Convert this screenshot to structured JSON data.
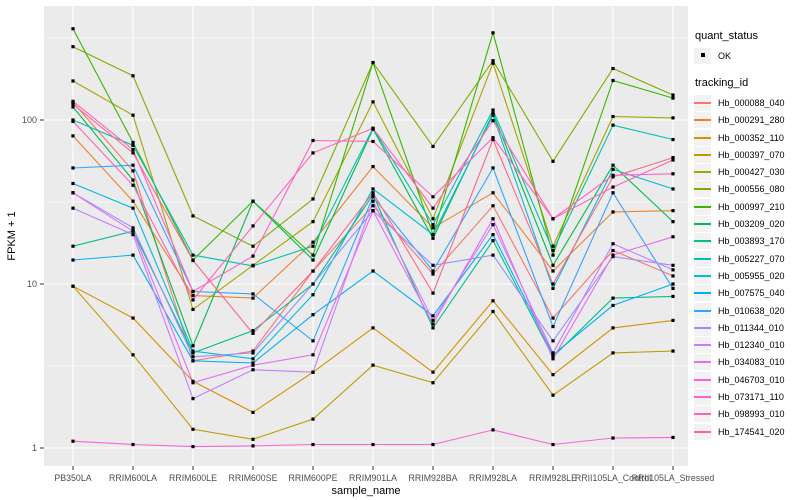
{
  "chart_data": {
    "type": "line",
    "title": "",
    "xlabel": "sample_name",
    "ylabel": "FPKM + 1",
    "y_scale": "log10",
    "ylim": [
      1,
      475
    ],
    "y_ticks": [
      1,
      10,
      100
    ],
    "y_minor_ticks": [
      3.162,
      31.62,
      316.2
    ],
    "grid": "on",
    "panel_bg": "#EBEBEB",
    "grid_color": "#FFFFFF",
    "point_color": "#000000",
    "axis_text_color": "#4D4D4D",
    "tick_mark_color": "#333333",
    "legend_position": "right",
    "categories": [
      "PB350LA",
      "RRIM600LA",
      "RRIM600LE",
      "RRIM600SE",
      "RRIM600PE",
      "RRIM901LA",
      "RRIM928BA",
      "RRIM928LA",
      "RRIM928LE",
      "RRII105LA_Control",
      "RRII105LA_Stressed"
    ],
    "series": [
      {
        "name": "Hb_000088_040",
        "color": "#F8766D",
        "values": [
          128,
          49,
          3.4,
          3.9,
          12,
          30,
          11.5,
          30,
          6.2,
          16,
          11.2
        ]
      },
      {
        "name": "Hb_000291_280",
        "color": "#EA8331",
        "values": [
          80,
          32,
          8.5,
          8.2,
          18,
          52,
          22,
          36,
          12,
          27.5,
          28
        ]
      },
      {
        "name": "Hb_000352_110",
        "color": "#D89000",
        "values": [
          9.7,
          6.2,
          2.55,
          1.65,
          2.9,
          5.4,
          2.9,
          7.9,
          2.8,
          5.4,
          6.0
        ]
      },
      {
        "name": "Hb_000397_070",
        "color": "#C09B00",
        "values": [
          9.7,
          3.7,
          1.3,
          1.13,
          1.5,
          3.2,
          2.5,
          6.8,
          2.1,
          3.8,
          3.9
        ]
      },
      {
        "name": "Hb_000427_030",
        "color": "#A3A500",
        "values": [
          173,
          107,
          7.0,
          13,
          24,
          129,
          25,
          222,
          17,
          105,
          103
        ]
      },
      {
        "name": "Hb_000556_080",
        "color": "#7CAE00",
        "values": [
          280,
          186,
          26,
          17,
          33,
          224,
          69,
          230,
          56,
          206,
          142
        ]
      },
      {
        "name": "Hb_000997_210",
        "color": "#39B600",
        "values": [
          360,
          73,
          14,
          32,
          15,
          224,
          20,
          340,
          15,
          174,
          136
        ]
      },
      {
        "name": "Hb_003209_020",
        "color": "#00BB4E",
        "values": [
          120,
          43,
          4.2,
          32,
          14,
          88,
          19,
          110,
          13,
          53,
          24
        ]
      },
      {
        "name": "Hb_003893_170",
        "color": "#00C087",
        "values": [
          17,
          21,
          3.8,
          5.2,
          10,
          35,
          5.4,
          18.4,
          3.6,
          8.2,
          8.4
        ]
      },
      {
        "name": "Hb_005227_070",
        "color": "#00C0B2",
        "values": [
          100,
          70,
          15,
          12.9,
          17,
          89,
          23,
          115,
          16,
          93,
          76
        ]
      },
      {
        "name": "Hb_005955_020",
        "color": "#00BCD8",
        "values": [
          41,
          29,
          3.9,
          3.5,
          8.6,
          38,
          20,
          107,
          9.4,
          50,
          38
        ]
      },
      {
        "name": "Hb_007575_040",
        "color": "#00B0F6",
        "values": [
          14,
          15,
          3.4,
          3.3,
          6.5,
          12,
          6.4,
          20,
          3.7,
          7.4,
          10
        ]
      },
      {
        "name": "Hb_010638_020",
        "color": "#35A2FF",
        "values": [
          51,
          53,
          9.0,
          8.7,
          4.5,
          34,
          12,
          51,
          5.5,
          36,
          9.4
        ]
      },
      {
        "name": "Hb_011344_010",
        "color": "#9590FF",
        "values": [
          36,
          22,
          3.6,
          3.8,
          10,
          28,
          13,
          15,
          4.5,
          14.7,
          13
        ]
      },
      {
        "name": "Hb_012340_010",
        "color": "#C77CFF",
        "values": [
          29,
          20,
          2.0,
          3.0,
          2.9,
          32,
          6.0,
          23,
          3.8,
          17.6,
          12.2
        ]
      },
      {
        "name": "Hb_034083_010",
        "color": "#E76BF3",
        "values": [
          36,
          21,
          2.5,
          3.2,
          3.7,
          28,
          5.7,
          25,
          3.5,
          15,
          19.4
        ]
      },
      {
        "name": "Hb_046703_010",
        "color": "#FA62DB",
        "values": [
          1.1,
          1.05,
          1.02,
          1.03,
          1.05,
          1.05,
          1.05,
          1.29,
          1.05,
          1.15,
          1.16
        ]
      },
      {
        "name": "Hb_073171_110",
        "color": "#FF61C9",
        "values": [
          130,
          66,
          9.0,
          14.8,
          75,
          74,
          34,
          78,
          25,
          46,
          47
        ]
      },
      {
        "name": "Hb_098993_010",
        "color": "#FF63B6",
        "values": [
          98,
          40,
          8.0,
          22.6,
          63,
          89,
          29,
          99,
          25,
          39,
          57
        ]
      },
      {
        "name": "Hb_174541_020",
        "color": "#FF6585",
        "values": [
          125,
          63,
          13.9,
          5.0,
          12,
          36,
          8.8,
          76,
          10,
          45,
          59
        ]
      }
    ]
  },
  "legend": {
    "quant_title": "quant_status",
    "quant_items": [
      {
        "label": "OK",
        "marker": "black-square-point"
      }
    ],
    "tracking_title": "tracking_id"
  }
}
